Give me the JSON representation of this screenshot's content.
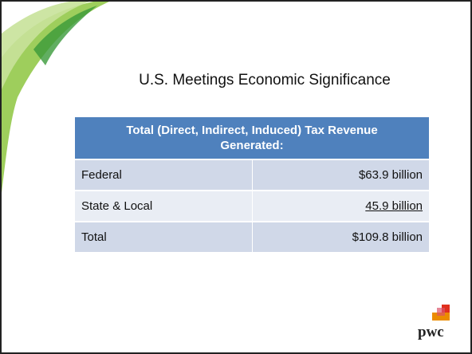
{
  "title": "U.S. Meetings Economic Significance",
  "table": {
    "header": "Total (Direct, Indirect, Induced) Tax Revenue Generated:",
    "rows": [
      [
        "Federal",
        "$63.9 billion"
      ],
      [
        "State & Local",
        "45.9 billion"
      ],
      [
        "Total",
        "$109.8 billion"
      ]
    ]
  },
  "logo": "pwc"
}
